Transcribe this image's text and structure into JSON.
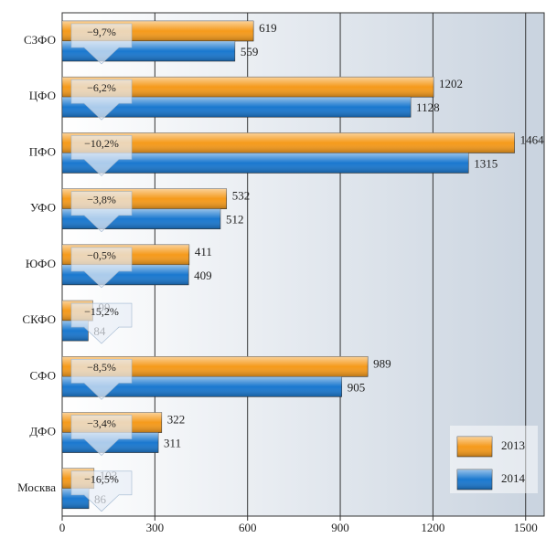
{
  "chart_data": {
    "type": "hbar",
    "categories": [
      "СЗФО",
      "ЦФО",
      "ПФО",
      "УФО",
      "ЮФО",
      "СКФО",
      "СФО",
      "ДФО",
      "Москва"
    ],
    "series": [
      {
        "name": "2013",
        "color": "#f59a1b",
        "values": [
          619,
          1202,
          1464,
          532,
          411,
          99,
          989,
          322,
          103
        ]
      },
      {
        "name": "2014",
        "color": "#1a78cf",
        "values": [
          559,
          1128,
          1315,
          512,
          409,
          84,
          905,
          311,
          86
        ]
      }
    ],
    "change_labels": [
      "−9,7%",
      "−6,2%",
      "−10,2%",
      "−3,8%",
      "−0,5%",
      "−15,2%",
      "−8,5%",
      "−3,4%",
      "−16,5%"
    ],
    "xlim": [
      0,
      1560
    ],
    "xticks": [
      0,
      300,
      600,
      900,
      1200,
      1500
    ],
    "grid": true,
    "legend": "lower right"
  }
}
